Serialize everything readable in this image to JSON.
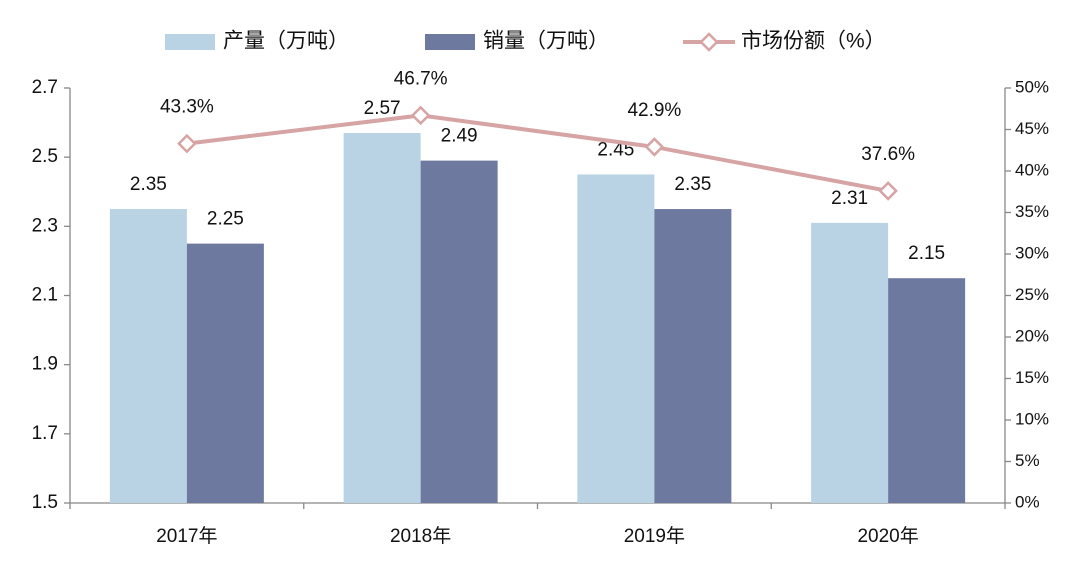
{
  "chart_data": {
    "type": "bar-line",
    "categories": [
      "2017年",
      "2018年",
      "2019年",
      "2020年"
    ],
    "series": [
      {
        "name": "产量（万吨）",
        "type": "bar",
        "color": "#b9d3e5",
        "values": [
          2.35,
          2.57,
          2.45,
          2.31
        ]
      },
      {
        "name": "销量（万吨）",
        "type": "bar",
        "color": "#6e799f",
        "values": [
          2.25,
          2.49,
          2.35,
          2.15
        ]
      },
      {
        "name": "市场份额（%）",
        "type": "line",
        "axis": "y2",
        "color": "#d6a4a4",
        "values": [
          43.3,
          46.7,
          42.9,
          37.6
        ],
        "value_labels": [
          "43.3%",
          "46.7%",
          "42.9%",
          "37.6%"
        ]
      }
    ],
    "ylim": [
      1.5,
      2.7
    ],
    "yticks": [
      1.5,
      1.7,
      1.9,
      2.1,
      2.3,
      2.5,
      2.7
    ],
    "y2lim": [
      0,
      50
    ],
    "y2ticks": [
      {
        "value": 0,
        "label": "0%"
      },
      {
        "value": 5,
        "label": "5%"
      },
      {
        "value": 10,
        "label": "10%"
      },
      {
        "value": 15,
        "label": "15%"
      },
      {
        "value": 20,
        "label": "20%"
      },
      {
        "value": 25,
        "label": "25%"
      },
      {
        "value": 30,
        "label": "30%"
      },
      {
        "value": 35,
        "label": "35%"
      },
      {
        "value": 40,
        "label": "40%"
      },
      {
        "value": 45,
        "label": "45%"
      },
      {
        "value": 50,
        "label": "50%"
      }
    ],
    "grid": false,
    "legend": "top"
  }
}
